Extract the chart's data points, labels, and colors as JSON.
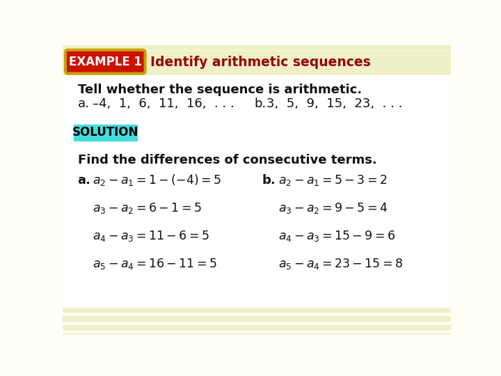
{
  "bg_color": "#fffff8",
  "top_stripe_color": "#f0f0c8",
  "bottom_stripe_color": "#f0f0c8",
  "header_bg": "#f0f0c8",
  "example_box_bg": "#cc1100",
  "example_box_border": "#c8a000",
  "example_box_text": "EXAMPLE 1",
  "example_box_text_color": "#ffffff",
  "header_title": "Identify arithmetic sequences",
  "header_title_color": "#990000",
  "solution_box_bg": "#44dddd",
  "solution_text": "SOLUTION",
  "solution_text_color": "#000000",
  "tell_line": "Tell whether the sequence is arithmetic.",
  "seq_a_label": "a.",
  "seq_a_text": "–4,  1,  6,  11,  16,  . . .",
  "seq_b_label": "b.",
  "seq_b_text": "3,  5,  9,  15,  23,  . . .",
  "find_line": "Find the differences of consecutive terms.",
  "col_a_label": "a.",
  "col_b_label": "b.",
  "rows_a": [
    "$a_2 - a_1 = 1 - (-4) = 5$",
    "$a_3 - a_2 = 6 - 1 = 5$",
    "$a_4 - a_3 = 11 - 6 = 5$",
    "$a_5 - a_4 = 16 - 11 = 5$"
  ],
  "rows_b": [
    "$a_2 - a_1 = 5 - 3 = 2$",
    "$a_3 - a_2 = 9 - 5 = 4$",
    "$a_4 - a_3 = 15 - 9 = 6$",
    "$a_5 - a_4 = 23 - 15 = 8$"
  ],
  "figsize": [
    7.2,
    5.4
  ],
  "dpi": 100
}
